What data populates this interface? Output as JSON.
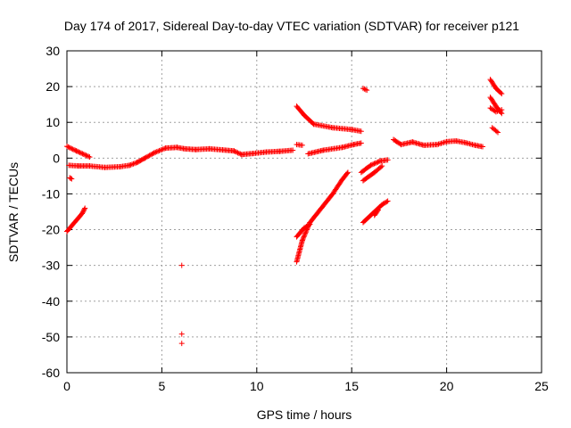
{
  "chart_data": {
    "type": "scatter",
    "title": "Day 174 of 2017, Sidereal Day-to-day VTEC variation (SDTVAR) for receiver p121",
    "xlabel": "GPS time / hours",
    "ylabel": "SDTVAR / TECUs",
    "xlim": [
      0,
      25
    ],
    "ylim": [
      -60,
      30
    ],
    "xticks": [
      0,
      5,
      10,
      15,
      20,
      25
    ],
    "yticks": [
      -60,
      -50,
      -40,
      -30,
      -20,
      -10,
      0,
      10,
      20,
      30
    ],
    "grid": true,
    "marker": "+",
    "color": "#ff0000",
    "segments": [
      [
        [
          0.0,
          3.3
        ],
        [
          0.5,
          2.0
        ],
        [
          1.2,
          0.3
        ]
      ],
      [
        [
          0.1,
          -2.0
        ],
        [
          0.6,
          -2.2
        ],
        [
          1.2,
          -2.2
        ],
        [
          2.0,
          -2.6
        ],
        [
          2.8,
          -2.4
        ],
        [
          3.3,
          -2.0
        ],
        [
          3.7,
          -1.2
        ],
        [
          4.1,
          0.0
        ],
        [
          4.6,
          1.5
        ],
        [
          5.2,
          2.8
        ],
        [
          5.8,
          3.0
        ],
        [
          6.2,
          2.6
        ],
        [
          6.8,
          2.4
        ],
        [
          7.5,
          2.6
        ],
        [
          8.2,
          2.3
        ],
        [
          8.8,
          2.0
        ],
        [
          9.2,
          1.0
        ],
        [
          9.8,
          1.3
        ],
        [
          10.5,
          1.7
        ],
        [
          11.2,
          1.9
        ],
        [
          11.9,
          2.2
        ]
      ],
      [
        [
          0.15,
          -5.5
        ],
        [
          0.25,
          -5.8
        ]
      ],
      [
        [
          0.0,
          -20.5
        ],
        [
          0.4,
          -18.0
        ],
        [
          0.8,
          -15.5
        ],
        [
          0.95,
          -14.0
        ]
      ],
      [
        [
          6.05,
          -30.0
        ]
      ],
      [
        [
          6.05,
          -49.2
        ]
      ],
      [
        [
          6.05,
          -51.8
        ]
      ],
      [
        [
          12.1,
          3.8
        ],
        [
          12.4,
          3.6
        ]
      ],
      [
        [
          12.1,
          14.5
        ],
        [
          12.5,
          12.0
        ],
        [
          13.0,
          9.5
        ],
        [
          14.0,
          8.5
        ],
        [
          15.0,
          8.0
        ],
        [
          15.5,
          7.5
        ]
      ],
      [
        [
          12.7,
          1.2
        ],
        [
          13.5,
          2.2
        ],
        [
          14.5,
          3.0
        ],
        [
          15.1,
          3.8
        ],
        [
          15.5,
          4.2
        ]
      ],
      [
        [
          12.1,
          -29.0
        ],
        [
          12.4,
          -23.0
        ],
        [
          12.8,
          -18.0
        ],
        [
          13.4,
          -14.0
        ],
        [
          14.0,
          -10.0
        ],
        [
          14.5,
          -6.0
        ],
        [
          14.8,
          -4.0
        ]
      ],
      [
        [
          12.1,
          -22.0
        ],
        [
          12.5,
          -19.5
        ],
        [
          12.8,
          -18.5
        ]
      ],
      [
        [
          15.6,
          19.5
        ],
        [
          15.8,
          19.0
        ]
      ],
      [
        [
          15.5,
          -4.0
        ],
        [
          16.0,
          -2.0
        ],
        [
          16.5,
          -0.8
        ],
        [
          16.9,
          -0.5
        ]
      ],
      [
        [
          15.6,
          -6.3
        ],
        [
          16.2,
          -4.0
        ],
        [
          16.6,
          -2.2
        ]
      ],
      [
        [
          15.6,
          -18.0
        ],
        [
          16.1,
          -15.5
        ],
        [
          16.6,
          -13.0
        ],
        [
          16.9,
          -12.0
        ]
      ],
      [
        [
          16.2,
          -16.0
        ],
        [
          16.4,
          -14.5
        ]
      ],
      [
        [
          17.2,
          5.2
        ],
        [
          17.6,
          3.8
        ],
        [
          18.2,
          4.5
        ],
        [
          18.8,
          3.6
        ],
        [
          19.5,
          3.8
        ],
        [
          20.0,
          4.6
        ],
        [
          20.5,
          4.8
        ],
        [
          21.0,
          4.3
        ],
        [
          21.5,
          3.6
        ],
        [
          21.9,
          3.2
        ]
      ],
      [
        [
          22.3,
          22.0
        ],
        [
          22.6,
          19.5
        ],
        [
          22.9,
          18.0
        ]
      ],
      [
        [
          22.3,
          17.0
        ],
        [
          22.6,
          14.5
        ],
        [
          22.9,
          12.5
        ]
      ],
      [
        [
          22.3,
          14.0
        ],
        [
          22.6,
          13.0
        ],
        [
          22.9,
          13.5
        ]
      ],
      [
        [
          22.4,
          8.5
        ],
        [
          22.7,
          7.2
        ]
      ]
    ]
  }
}
